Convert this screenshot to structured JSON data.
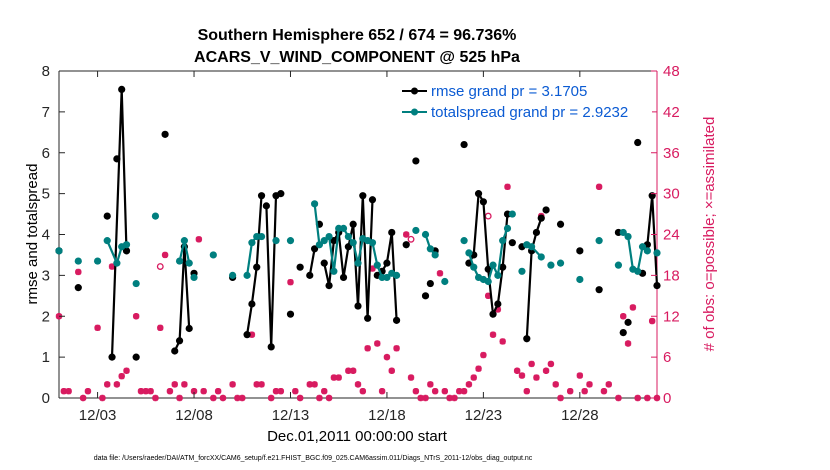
{
  "chart_data": {
    "type": "line",
    "title": "Southern Hemisphere 652 / 674 = 96.736%",
    "subtitle": "ACARS_V_WIND_COMPONENT @ 525 hPa",
    "xlabel": "Dec.01,2011 00:00:00 start",
    "ylabel_left": "rmse and totalspread",
    "ylabel_right": "# of obs: o=possible; ×=assimilated",
    "xlim": [
      1.0,
      32.0
    ],
    "ylim_left": [
      0,
      8
    ],
    "ylim_right": [
      0,
      48
    ],
    "x_ticks": [
      3,
      8,
      13,
      18,
      23,
      28
    ],
    "x_tick_labels": [
      "12/03",
      "12/08",
      "12/13",
      "12/18",
      "12/23",
      "12/28"
    ],
    "y_left_ticks": [
      "0",
      "1",
      "2",
      "3",
      "4",
      "5",
      "6",
      "7",
      "8"
    ],
    "y_right_ticks": [
      "0",
      "6",
      "12",
      "18",
      "24",
      "30",
      "36",
      "42",
      "48"
    ],
    "legend": [
      {
        "name": "rmse grand pr = 3.1705",
        "color": "#000000"
      },
      {
        "name": "totalspread grand pr = 2.9232",
        "color": "#007f7f"
      }
    ],
    "series": [
      {
        "name": "rmse",
        "color": "#000000",
        "points": [
          [
            1.0,
            3.6
          ],
          [
            2.0,
            2.7
          ],
          [
            3.5,
            4.45
          ],
          [
            3.75,
            1.0
          ],
          [
            4.0,
            5.85
          ],
          [
            4.25,
            7.55
          ],
          [
            4.5,
            3.6
          ],
          [
            5.0,
            1.0
          ],
          [
            6.5,
            6.45
          ],
          [
            7.0,
            1.15
          ],
          [
            7.25,
            1.4
          ],
          [
            7.5,
            3.7
          ],
          [
            7.75,
            1.7
          ],
          [
            8.0,
            3.05
          ],
          [
            10.0,
            2.95
          ],
          [
            10.75,
            1.55
          ],
          [
            11.0,
            2.3
          ],
          [
            11.25,
            3.2
          ],
          [
            11.5,
            4.95
          ],
          [
            11.75,
            4.7
          ],
          [
            12.0,
            1.25
          ],
          [
            12.25,
            4.95
          ],
          [
            12.5,
            5.0
          ],
          [
            13.0,
            2.05
          ],
          [
            13.5,
            3.2
          ],
          [
            14.0,
            3.0
          ],
          [
            14.25,
            3.65
          ],
          [
            14.5,
            4.25
          ],
          [
            14.75,
            3.3
          ],
          [
            15.0,
            2.75
          ],
          [
            15.25,
            3.85
          ],
          [
            15.5,
            4.05
          ],
          [
            15.75,
            2.95
          ],
          [
            16.0,
            3.7
          ],
          [
            16.25,
            4.25
          ],
          [
            16.5,
            2.25
          ],
          [
            16.75,
            4.95
          ],
          [
            17.0,
            1.95
          ],
          [
            17.25,
            4.85
          ],
          [
            17.5,
            3.0
          ],
          [
            17.75,
            3.1
          ],
          [
            18.0,
            3.3
          ],
          [
            18.25,
            4.05
          ],
          [
            18.5,
            1.9
          ],
          [
            19.0,
            3.75
          ],
          [
            19.5,
            5.8
          ],
          [
            20.0,
            2.5
          ],
          [
            20.25,
            2.8
          ],
          [
            20.5,
            3.6
          ],
          [
            22.0,
            6.2
          ],
          [
            22.25,
            3.3
          ],
          [
            22.5,
            3.5
          ],
          [
            22.75,
            5.0
          ],
          [
            23.0,
            4.8
          ],
          [
            23.25,
            3.15
          ],
          [
            23.5,
            2.05
          ],
          [
            23.75,
            2.3
          ],
          [
            24.0,
            3.2
          ],
          [
            24.25,
            4.5
          ],
          [
            24.5,
            3.8
          ],
          [
            25.0,
            3.7
          ],
          [
            25.25,
            1.45
          ],
          [
            25.5,
            3.6
          ],
          [
            25.75,
            4.05
          ],
          [
            26.0,
            4.4
          ],
          [
            26.25,
            4.6
          ],
          [
            27.0,
            4.25
          ],
          [
            28.0,
            3.6
          ],
          [
            29.0,
            2.65
          ],
          [
            30.0,
            4.05
          ],
          [
            30.25,
            1.6
          ],
          [
            30.5,
            1.85
          ],
          [
            31.0,
            6.25
          ],
          [
            31.25,
            3.05
          ],
          [
            31.5,
            3.75
          ],
          [
            31.75,
            4.95
          ],
          [
            32.0,
            2.75
          ]
        ],
        "segments": [
          [
            3.75,
            4.25,
            4.5
          ],
          [
            7.0,
            7.25,
            7.5,
            7.75
          ],
          [
            10.75,
            11.0,
            11.25,
            11.5
          ],
          [
            11.75,
            12.0,
            12.25,
            12.5
          ],
          [
            14.0,
            14.25
          ],
          [
            14.75,
            15.0,
            15.25,
            15.5,
            15.75,
            16.0,
            16.25,
            16.5,
            16.75,
            17.0,
            17.25
          ],
          [
            17.75,
            18.0,
            18.25,
            18.5
          ],
          [
            22.25,
            22.5,
            22.75,
            23.0,
            23.25,
            23.5,
            23.75,
            24.0,
            24.25
          ],
          [
            25.25,
            25.5,
            25.75,
            26.0
          ],
          [
            31.5,
            31.75,
            32.0
          ]
        ]
      },
      {
        "name": "totalspread",
        "color": "#007f7f",
        "points": [
          [
            1.0,
            3.6
          ],
          [
            2.0,
            3.35
          ],
          [
            3.0,
            3.35
          ],
          [
            3.5,
            3.85
          ],
          [
            4.0,
            3.3
          ],
          [
            4.25,
            3.7
          ],
          [
            4.5,
            3.75
          ],
          [
            5.0,
            2.8
          ],
          [
            6.0,
            4.45
          ],
          [
            7.25,
            3.35
          ],
          [
            7.5,
            3.85
          ],
          [
            7.75,
            3.3
          ],
          [
            8.0,
            2.95
          ],
          [
            9.0,
            3.5
          ],
          [
            10.0,
            3.0
          ],
          [
            10.75,
            3.0
          ],
          [
            11.0,
            3.8
          ],
          [
            11.25,
            3.95
          ],
          [
            11.5,
            3.95
          ],
          [
            12.25,
            3.85
          ],
          [
            13.0,
            3.85
          ],
          [
            14.25,
            4.75
          ],
          [
            14.5,
            3.75
          ],
          [
            14.75,
            3.85
          ],
          [
            15.0,
            3.95
          ],
          [
            15.25,
            3.1
          ],
          [
            15.5,
            4.15
          ],
          [
            15.75,
            4.15
          ],
          [
            16.0,
            3.95
          ],
          [
            16.25,
            3.8
          ],
          [
            16.5,
            3.3
          ],
          [
            16.75,
            3.9
          ],
          [
            17.0,
            3.85
          ],
          [
            17.25,
            3.8
          ],
          [
            17.5,
            3.25
          ],
          [
            17.75,
            2.95
          ],
          [
            18.0,
            2.95
          ],
          [
            18.25,
            3.05
          ],
          [
            18.5,
            3.0
          ],
          [
            19.5,
            4.1
          ],
          [
            20.0,
            4.0
          ],
          [
            20.25,
            3.65
          ],
          [
            20.5,
            3.5
          ],
          [
            21.0,
            2.85
          ],
          [
            22.0,
            3.85
          ],
          [
            22.25,
            3.55
          ],
          [
            22.5,
            3.2
          ],
          [
            22.75,
            2.95
          ],
          [
            23.0,
            2.9
          ],
          [
            23.25,
            2.85
          ],
          [
            23.5,
            3.25
          ],
          [
            23.75,
            3.0
          ],
          [
            24.0,
            3.85
          ],
          [
            24.25,
            4.15
          ],
          [
            24.5,
            4.5
          ],
          [
            25.0,
            3.1
          ],
          [
            25.25,
            3.75
          ],
          [
            25.5,
            3.7
          ],
          [
            26.0,
            3.45
          ],
          [
            26.5,
            3.25
          ],
          [
            27.0,
            3.3
          ],
          [
            28.0,
            2.9
          ],
          [
            29.0,
            3.85
          ],
          [
            30.0,
            3.25
          ],
          [
            30.25,
            4.05
          ],
          [
            30.5,
            3.95
          ],
          [
            30.75,
            3.15
          ],
          [
            31.0,
            3.1
          ],
          [
            31.25,
            3.7
          ],
          [
            31.5,
            3.6
          ],
          [
            32.0,
            3.55
          ]
        ],
        "segments": [
          [
            3.5,
            4.0,
            4.25,
            4.5
          ],
          [
            7.25,
            7.5,
            7.75
          ],
          [
            10.75,
            11.0,
            11.25,
            11.5
          ],
          [
            14.25,
            14.5,
            14.75,
            15.0,
            15.25,
            15.5,
            15.75,
            16.0,
            16.25,
            16.5,
            16.75,
            17.0,
            17.25,
            17.5,
            17.75,
            18.0,
            18.25
          ],
          [
            20.0,
            20.25,
            20.5
          ],
          [
            22.25,
            22.5,
            22.75,
            23.0,
            23.25,
            23.5,
            23.75,
            24.0,
            24.25
          ],
          [
            25.25,
            25.5,
            26.0
          ],
          [
            30.25,
            30.5,
            30.75,
            31.0,
            31.25,
            31.5
          ]
        ]
      }
    ],
    "obs_assimilated": [
      [
        1.0,
        12
      ],
      [
        1.25,
        1
      ],
      [
        1.5,
        1
      ],
      [
        2.0,
        18.5
      ],
      [
        2.25,
        0
      ],
      [
        2.5,
        1
      ],
      [
        3.0,
        10.3
      ],
      [
        3.25,
        0
      ],
      [
        3.5,
        2
      ],
      [
        3.75,
        19.3
      ],
      [
        4.0,
        2
      ],
      [
        4.25,
        3.2
      ],
      [
        4.5,
        4
      ],
      [
        5.0,
        12
      ],
      [
        5.25,
        1
      ],
      [
        5.5,
        1
      ],
      [
        5.75,
        1
      ],
      [
        6.0,
        0
      ],
      [
        6.25,
        10.3
      ],
      [
        6.5,
        21
      ],
      [
        6.75,
        1
      ],
      [
        7.0,
        2
      ],
      [
        7.25,
        0
      ],
      [
        7.5,
        2
      ],
      [
        8.0,
        1
      ],
      [
        8.25,
        23.3
      ],
      [
        8.5,
        1
      ],
      [
        9.0,
        0
      ],
      [
        9.25,
        1
      ],
      [
        9.5,
        0
      ],
      [
        10.0,
        2
      ],
      [
        10.25,
        0
      ],
      [
        10.5,
        0
      ],
      [
        11.0,
        9.3
      ],
      [
        11.25,
        2
      ],
      [
        11.5,
        2
      ],
      [
        12.0,
        0
      ],
      [
        12.25,
        1
      ],
      [
        12.5,
        1
      ],
      [
        13.0,
        17
      ],
      [
        13.25,
        1
      ],
      [
        13.5,
        0
      ],
      [
        14.0,
        2
      ],
      [
        14.25,
        2
      ],
      [
        14.5,
        0
      ],
      [
        14.75,
        1
      ],
      [
        15.0,
        0
      ],
      [
        15.25,
        3
      ],
      [
        15.5,
        3
      ],
      [
        16.0,
        4
      ],
      [
        16.25,
        4
      ],
      [
        16.5,
        2
      ],
      [
        16.75,
        1
      ],
      [
        17.0,
        7.3
      ],
      [
        17.25,
        19
      ],
      [
        17.5,
        8
      ],
      [
        17.75,
        1
      ],
      [
        18.0,
        6
      ],
      [
        18.25,
        4
      ],
      [
        18.5,
        7.3
      ],
      [
        19.0,
        24
      ],
      [
        19.25,
        3
      ],
      [
        19.5,
        1
      ],
      [
        19.75,
        0
      ],
      [
        20.0,
        0
      ],
      [
        20.25,
        2
      ],
      [
        20.5,
        1
      ],
      [
        20.75,
        18.3
      ],
      [
        21.0,
        1
      ],
      [
        21.25,
        0
      ],
      [
        21.5,
        0
      ],
      [
        21.75,
        1
      ],
      [
        22.0,
        1
      ],
      [
        22.25,
        2
      ],
      [
        22.5,
        3
      ],
      [
        22.75,
        4.3
      ],
      [
        23.0,
        6.3
      ],
      [
        23.25,
        15
      ],
      [
        23.5,
        9.3
      ],
      [
        23.75,
        13
      ],
      [
        24.0,
        8.3
      ],
      [
        24.25,
        31
      ],
      [
        24.5,
        41.3
      ],
      [
        24.75,
        4
      ],
      [
        25.0,
        3.3
      ],
      [
        25.25,
        1
      ],
      [
        25.5,
        5
      ],
      [
        25.75,
        3
      ],
      [
        26.0,
        26.7
      ],
      [
        26.25,
        4
      ],
      [
        26.5,
        5
      ],
      [
        26.75,
        2
      ],
      [
        27.0,
        0
      ],
      [
        27.5,
        1
      ],
      [
        28.0,
        3.3
      ],
      [
        28.25,
        1
      ],
      [
        28.5,
        2
      ],
      [
        29.0,
        31
      ],
      [
        29.25,
        1
      ],
      [
        29.5,
        2
      ],
      [
        30.0,
        0
      ],
      [
        30.25,
        12
      ],
      [
        30.5,
        8
      ],
      [
        30.75,
        13.3
      ],
      [
        31.0,
        0
      ],
      [
        31.5,
        0
      ],
      [
        31.75,
        11.3
      ],
      [
        32.0,
        0
      ]
    ],
    "obs_possible": [
      [
        6.25,
        19.3
      ],
      [
        19.25,
        23.3
      ],
      [
        23.25,
        26.7
      ]
    ]
  },
  "footer": "data file: /Users/raeder/DAI/ATM_forcXX/CAM6_setup/f.e21.FHIST_BGC.f09_025.CAM6assim.011/Diags_NTrS_2011-12/obs_diag_output.nc"
}
